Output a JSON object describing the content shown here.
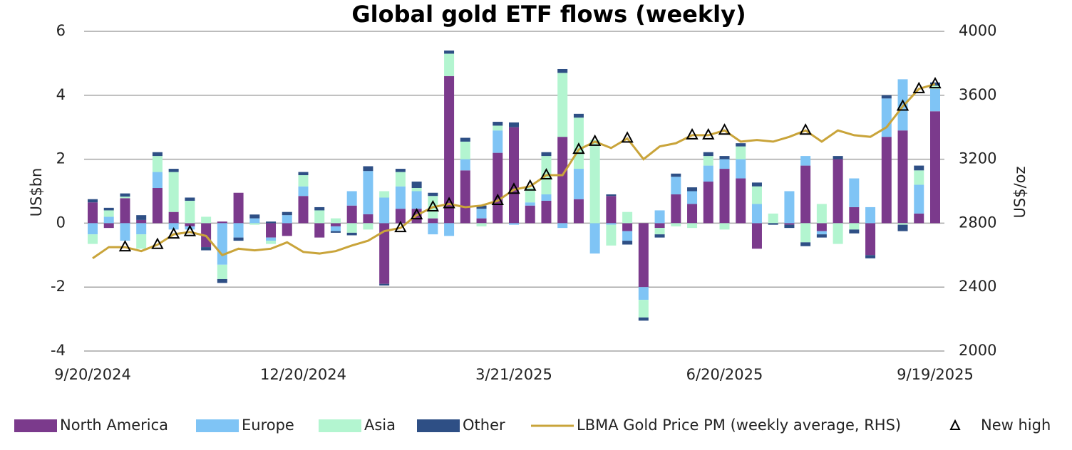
{
  "chart_data": {
    "type": "bar",
    "title": "Global gold ETF flows (weekly)",
    "y_label": "US$bn",
    "y2_label": "US$/oz",
    "categories": [
      "9/20/2024",
      null,
      null,
      null,
      null,
      null,
      null,
      null,
      null,
      null,
      null,
      null,
      null,
      "12/20/2024",
      null,
      null,
      null,
      null,
      null,
      null,
      null,
      null,
      null,
      null,
      null,
      null,
      "3/21/2025",
      null,
      null,
      null,
      null,
      null,
      null,
      null,
      null,
      null,
      null,
      null,
      null,
      "6/20/2025",
      null,
      null,
      null,
      null,
      null,
      null,
      null,
      null,
      null,
      null,
      null,
      null,
      "9/19/2025"
    ],
    "ylim": [
      -4,
      6
    ],
    "yticks": [
      -4,
      -2,
      0,
      2,
      4,
      6
    ],
    "y2lim": [
      2000,
      4000
    ],
    "y2ticks": [
      2000,
      2400,
      2800,
      3200,
      3600,
      4000
    ],
    "grid": true,
    "stacked": true,
    "legend": "bottom",
    "series": [
      {
        "name": "North America",
        "type": "bar",
        "color": "#7b3a8c",
        "values": [
          0.65,
          -0.15,
          0.78,
          0.1,
          1.1,
          0.35,
          -0.1,
          -0.75,
          0.05,
          0.95,
          0,
          -0.45,
          -0.4,
          0.85,
          -0.45,
          -0.1,
          0.55,
          0.28,
          -1.9,
          0.45,
          0.45,
          0.15,
          4.6,
          1.65,
          0.15,
          2.2,
          3.0,
          0.55,
          0.7,
          2.7,
          0.75,
          0,
          0.85,
          -0.25,
          -2.0,
          -0.15,
          0.9,
          0.6,
          1.3,
          1.7,
          1.4,
          -0.8,
          0,
          -0.05,
          1.8,
          -0.25,
          2.0,
          0.5,
          -1.0,
          2.7,
          2.9,
          0.3,
          3.5
        ]
      },
      {
        "name": "Europe",
        "type": "bar",
        "color": "#7fc4f5",
        "values": [
          -0.35,
          0.2,
          -0.55,
          -0.35,
          0.5,
          -0.2,
          -0.1,
          0,
          -1.3,
          -0.45,
          0.15,
          -0.1,
          0.25,
          0.3,
          0,
          -0.15,
          0.45,
          1.35,
          0.8,
          0.7,
          0.55,
          -0.35,
          -0.4,
          0.35,
          0.3,
          0.7,
          -0.05,
          0.1,
          0.2,
          -0.15,
          0.95,
          -0.95,
          -0.05,
          -0.3,
          -0.4,
          0.4,
          0.55,
          0.4,
          0.5,
          0.3,
          0.6,
          0.6,
          0,
          1.0,
          0.3,
          -0.1,
          0,
          0.9,
          0.5,
          1.2,
          1.6,
          0.9,
          0.7
        ]
      },
      {
        "name": "Asia",
        "type": "bar",
        "color": "#b3f5d0",
        "values": [
          -0.3,
          0.2,
          0.05,
          -0.45,
          0.5,
          1.25,
          0.7,
          0.2,
          -0.45,
          0,
          -0.05,
          -0.1,
          0,
          0.35,
          0.4,
          0.15,
          -0.3,
          -0.2,
          0.2,
          0.45,
          0.1,
          0.7,
          0.7,
          0.55,
          -0.1,
          0.15,
          0,
          0.45,
          1.2,
          2.0,
          1.6,
          2.6,
          -0.65,
          0.35,
          -0.55,
          -0.2,
          -0.1,
          -0.15,
          0.3,
          -0.2,
          0.4,
          0.55,
          0.3,
          0,
          -0.6,
          0.6,
          -0.65,
          -0.2,
          0,
          0,
          -0.05,
          0.45,
          0.1
        ]
      },
      {
        "name": "Other",
        "type": "bar",
        "color": "#2e4f85",
        "values": [
          0.1,
          0.08,
          0.1,
          0.15,
          0.12,
          0.1,
          0.1,
          -0.1,
          -0.12,
          -0.1,
          0.12,
          0.05,
          0.1,
          0.1,
          0.1,
          -0.05,
          -0.08,
          0.15,
          -0.05,
          0.1,
          0.2,
          0.1,
          0.1,
          0.12,
          0.1,
          0.12,
          0.15,
          0,
          0.12,
          0.12,
          0.12,
          0,
          0.05,
          -0.12,
          -0.1,
          -0.1,
          0.1,
          0.12,
          0.12,
          0.1,
          0.1,
          0.12,
          -0.05,
          -0.1,
          -0.12,
          -0.1,
          0.1,
          -0.12,
          -0.1,
          0.1,
          -0.2,
          0.15,
          0.1
        ]
      },
      {
        "name": "LBMA Gold Price PM (weekly average, RHS)",
        "type": "line",
        "axis": "y2",
        "color": "#c9a43a",
        "values": [
          2580,
          2650,
          2650,
          2625,
          2665,
          2730,
          2745,
          2720,
          2600,
          2640,
          2630,
          2640,
          2680,
          2620,
          2610,
          2625,
          2660,
          2690,
          2750,
          2770,
          2850,
          2900,
          2920,
          2900,
          2910,
          2940,
          3010,
          3030,
          3100,
          3100,
          3260,
          3310,
          3270,
          3330,
          3200,
          3280,
          3300,
          3350,
          3350,
          3380,
          3310,
          3320,
          3310,
          3340,
          3380,
          3310,
          3380,
          3350,
          3340,
          3400,
          3530,
          3640,
          3670
        ]
      },
      {
        "name": "New high",
        "type": "marker",
        "axis": "y2",
        "color": "#000000",
        "values": [
          null,
          null,
          2650,
          null,
          2665,
          2730,
          2745,
          null,
          null,
          null,
          null,
          null,
          null,
          null,
          null,
          null,
          null,
          null,
          null,
          2770,
          2850,
          2900,
          2920,
          null,
          null,
          2940,
          3010,
          3030,
          3100,
          null,
          3260,
          3310,
          null,
          3330,
          null,
          null,
          null,
          3350,
          3350,
          3380,
          null,
          null,
          null,
          null,
          3380,
          null,
          null,
          null,
          null,
          null,
          3530,
          3640,
          3670
        ]
      }
    ]
  }
}
